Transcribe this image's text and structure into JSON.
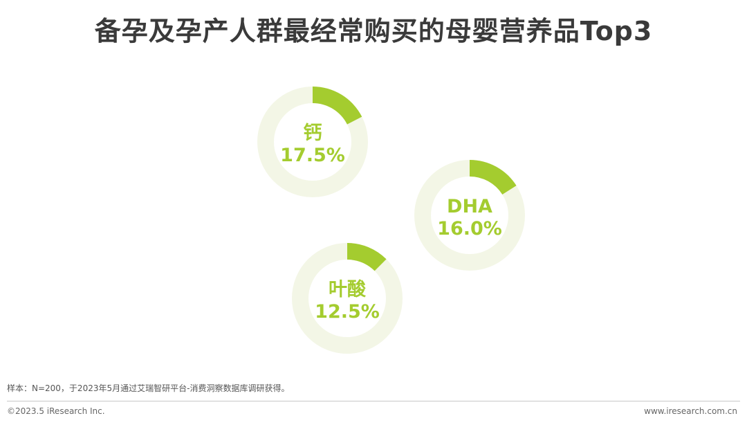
{
  "header": {
    "title": "备孕及孕产人群最经常购买的母婴营养品Top3"
  },
  "chart_data": {
    "type": "pie",
    "variant": "donut",
    "title": "备孕及孕产人群最经常购买的母婴营养品Top3",
    "unit": "%",
    "items": [
      {
        "name": "钙",
        "value": 17.5,
        "label": "17.5%"
      },
      {
        "name": "DHA",
        "value": 16.0,
        "label": "16.0%"
      },
      {
        "name": "叶酸",
        "value": 12.5,
        "label": "12.5%"
      }
    ],
    "colors": {
      "accent": "#a4cc2f",
      "track": "#f3f6e6"
    }
  },
  "footer": {
    "source": "样本：N=200，于2023年5月通过艾瑞智研平台-消费洞察数据库调研获得。",
    "copyright": "©2023.5 iResearch Inc.",
    "website": "www.iresearch.com.cn"
  }
}
